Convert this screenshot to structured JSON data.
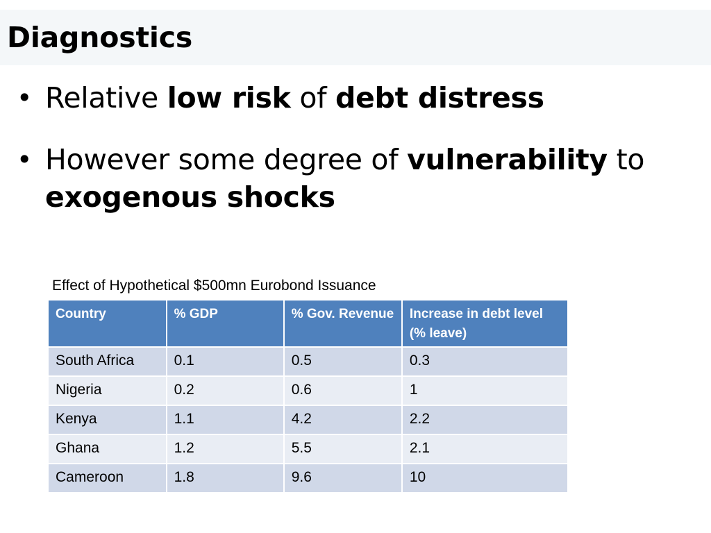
{
  "slide": {
    "title": "Diagnostics",
    "bullets": [
      {
        "parts": [
          {
            "text": "Relative ",
            "bold": false
          },
          {
            "text": "low risk",
            "bold": true
          },
          {
            "text": " of ",
            "bold": false
          },
          {
            "text": "debt distress",
            "bold": true
          }
        ]
      },
      {
        "parts": [
          {
            "text": "However some degree of ",
            "bold": false
          },
          {
            "text": "vulnerability",
            "bold": true
          },
          {
            "text": " to ",
            "bold": false
          },
          {
            "text": "exogenous shocks",
            "bold": true
          }
        ]
      }
    ],
    "bullet_glyph": "•"
  },
  "table": {
    "caption": "Effect of Hypothetical $500mn Eurobond Issuance",
    "headers": [
      "Country",
      "% GDP",
      "% Gov. Revenue",
      "Increase in debt level (% leave)"
    ],
    "rows": [
      [
        "South Africa",
        "0.1",
        "0.5",
        "0.3"
      ],
      [
        "Nigeria",
        "0.2",
        "0.6",
        "1"
      ],
      [
        "Kenya",
        "1.1",
        "4.2",
        "2.2"
      ],
      [
        "Ghana",
        "1.2",
        "5.5",
        "2.1"
      ],
      [
        "Cameroon",
        "1.8",
        "9.6",
        "10"
      ]
    ]
  },
  "colors": {
    "header_bg": "#4f81bd",
    "row_odd_bg": "#d0d8e8",
    "row_even_bg": "#e9edf4",
    "title_band_bg": "#f4f7f9"
  }
}
